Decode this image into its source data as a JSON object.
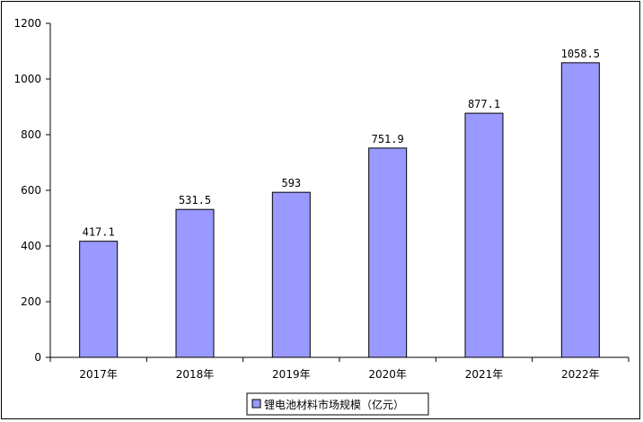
{
  "chart_data": {
    "type": "bar",
    "categories": [
      "2017年",
      "2018年",
      "2019年",
      "2020年",
      "2021年",
      "2022年"
    ],
    "series": [
      {
        "name": "锂电池材料市场规模（亿元）",
        "values": [
          417.1,
          531.5,
          593,
          751.9,
          877.1,
          1058.5
        ],
        "labels": [
          "417.1",
          "531.5",
          "593",
          "751.9",
          "877.1",
          "1058.5"
        ]
      }
    ],
    "ylim": [
      0,
      1200
    ],
    "yticks": [
      0,
      200,
      400,
      600,
      800,
      1000,
      1200
    ],
    "grid": false,
    "legend": "bottom",
    "colors": {
      "bar": "#9999ff",
      "bar_stroke": "#000000",
      "axis": "#000000"
    }
  }
}
